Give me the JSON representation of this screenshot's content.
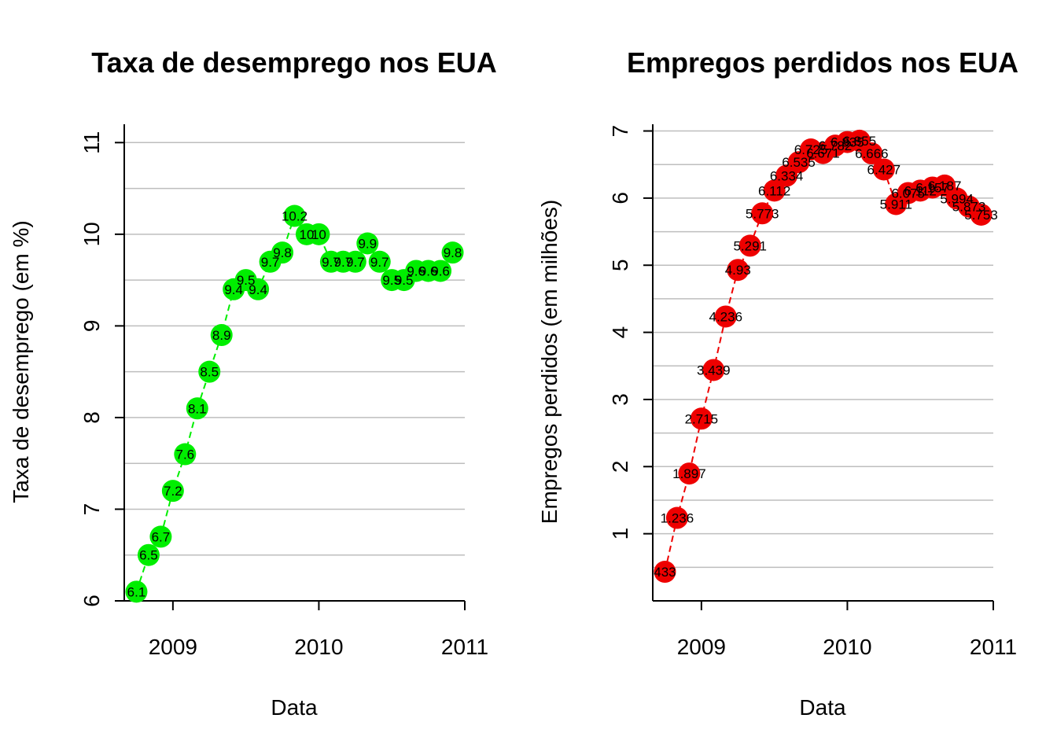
{
  "chart_data": [
    {
      "type": "line",
      "title": "Taxa de desemprego nos EUA",
      "xlabel": "Data",
      "ylabel": "Taxa de desemprego (em %)",
      "ylim": [
        6,
        11
      ],
      "yticks": [
        "6",
        "7",
        "8",
        "9",
        "10",
        "11"
      ],
      "xlim": [
        "2008-09",
        "2011-01"
      ],
      "xticks": [
        "2009",
        "2010",
        "2011"
      ],
      "grid": "horizontal",
      "line_style": "dashed",
      "color": "#00ee00",
      "series": [
        {
          "x": [
            "2008-10",
            "2008-11",
            "2008-12",
            "2009-01",
            "2009-02",
            "2009-03",
            "2009-04",
            "2009-05",
            "2009-06",
            "2009-07",
            "2009-08",
            "2009-09",
            "2009-10",
            "2009-11",
            "2009-12",
            "2010-01",
            "2010-02",
            "2010-03",
            "2010-04",
            "2010-05",
            "2010-06",
            "2010-07",
            "2010-08",
            "2010-09",
            "2010-10",
            "2010-11",
            "2010-12"
          ],
          "values": [
            6.1,
            6.5,
            6.7,
            7.2,
            7.6,
            8.1,
            8.5,
            8.9,
            9.4,
            9.5,
            9.4,
            9.7,
            9.8,
            10.2,
            10,
            10,
            9.7,
            9.7,
            9.7,
            9.9,
            9.7,
            9.5,
            9.5,
            9.6,
            9.6,
            9.6,
            9.8
          ],
          "labels": [
            "6.1",
            "6.5",
            "6.7",
            "7.2",
            "7.6",
            "8.1",
            "8.5",
            "8.9",
            "9.4",
            "9.5",
            "9.4",
            "9.7",
            "9.8",
            "10.2",
            "10",
            "10",
            "9.7",
            "9.7",
            "9.7",
            "9.9",
            "9.7",
            "9.5",
            "9.5",
            "9.6",
            "9.6",
            "9.6",
            "9.8"
          ]
        }
      ]
    },
    {
      "type": "line",
      "title": "Empregos perdidos nos EUA",
      "xlabel": "Data",
      "ylabel": "Empregos perdidos (em milhões)",
      "ylim": [
        0,
        7
      ],
      "yticks": [
        "1",
        "2",
        "3",
        "4",
        "5",
        "6",
        "7"
      ],
      "xlim": [
        "2008-09",
        "2011-01"
      ],
      "xticks": [
        "2009",
        "2010",
        "2011"
      ],
      "grid": "horizontal",
      "line_style": "dashed",
      "color": "#ee0000",
      "series": [
        {
          "x": [
            "2008-10",
            "2008-11",
            "2008-12",
            "2009-01",
            "2009-02",
            "2009-03",
            "2009-04",
            "2009-05",
            "2009-06",
            "2009-07",
            "2009-08",
            "2009-09",
            "2009-10",
            "2009-11",
            "2009-12",
            "2010-01",
            "2010-02",
            "2010-03",
            "2010-04",
            "2010-05",
            "2010-06",
            "2010-07",
            "2010-08",
            "2010-09",
            "2010-10",
            "2010-11",
            "2010-12"
          ],
          "values": [
            0.433,
            1.236,
            1.897,
            2.715,
            3.439,
            4.236,
            4.93,
            5.291,
            5.773,
            6.112,
            6.334,
            6.535,
            6.725,
            6.671,
            6.782,
            6.835,
            6.855,
            6.666,
            6.427,
            5.911,
            6.075,
            6.112,
            6.157,
            6.187,
            5.994,
            5.873,
            5.753
          ],
          "labels": [
            "433",
            "1.236",
            "1.897",
            "2.715",
            "3.439",
            "4.236",
            "4.93",
            "5.291",
            "5.773",
            "6.112",
            "6.334",
            "6.535",
            "6.725",
            "6.671",
            "6.782",
            "6.835",
            "6.855",
            "6.666",
            "6.427",
            "5.911",
            "6.075",
            "6.112",
            "6.157",
            "6.187",
            "5.994",
            "5.873",
            "5.753"
          ]
        }
      ]
    }
  ]
}
